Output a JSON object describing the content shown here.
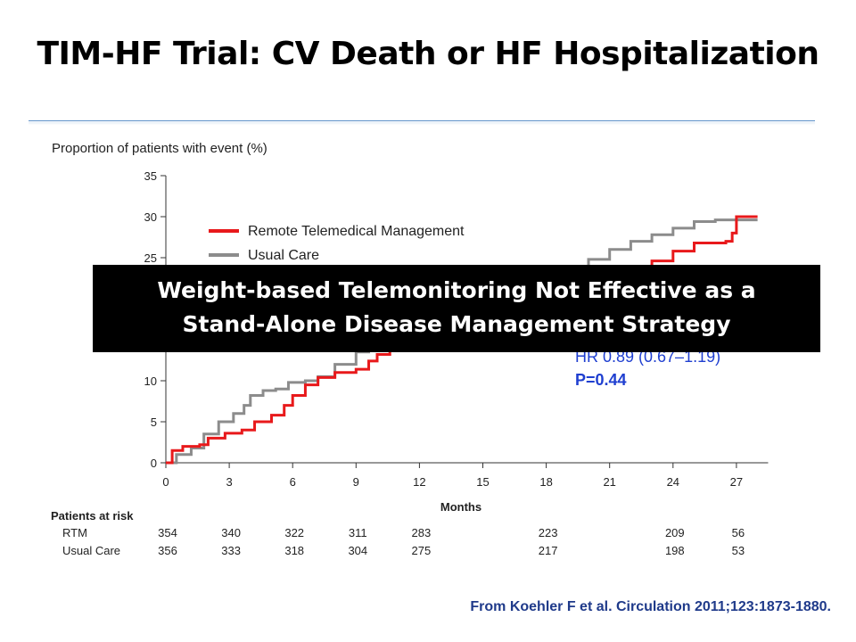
{
  "slide": {
    "title": "TIM-HF Trial: CV Death or HF Hospitalization",
    "banner_line1": "Weight-based Telemonitoring Not Effective as a",
    "banner_line2": "Stand-Alone Disease Management Strategy",
    "citation": "From Koehler F et al. Circulation 2011;123:1873-1880."
  },
  "chart_data": {
    "type": "line",
    "ylabel": "Proportion of patients with event (%)",
    "xlabel": "Months",
    "xlim": [
      0,
      28.5
    ],
    "ylim": [
      0,
      35
    ],
    "x_ticks": [
      0,
      3,
      6,
      9,
      12,
      15,
      18,
      21,
      24,
      27
    ],
    "y_ticks": [
      0,
      5,
      10,
      15,
      20,
      25,
      30,
      35
    ],
    "legend": {
      "placement": "top-left"
    },
    "series": [
      {
        "name": "Remote Telemedical Management",
        "color": "#e8191b",
        "points": [
          [
            0,
            0
          ],
          [
            0.3,
            1.5
          ],
          [
            0.8,
            2.0
          ],
          [
            1.6,
            2.2
          ],
          [
            2.0,
            3.0
          ],
          [
            2.8,
            3.6
          ],
          [
            3.6,
            4.0
          ],
          [
            4.2,
            5.0
          ],
          [
            5.0,
            5.8
          ],
          [
            5.6,
            7.0
          ],
          [
            6.0,
            8.2
          ],
          [
            6.6,
            9.5
          ],
          [
            7.2,
            10.4
          ],
          [
            8.0,
            11.0
          ],
          [
            9.0,
            11.4
          ],
          [
            9.6,
            12.4
          ],
          [
            10.0,
            13.2
          ],
          [
            10.6,
            14.0
          ],
          [
            11.5,
            14.2
          ]
        ],
        "points_tail": [
          [
            22.0,
            22.8
          ],
          [
            23.0,
            24.6
          ],
          [
            24.0,
            25.8
          ],
          [
            25.0,
            26.8
          ],
          [
            26.5,
            27.0
          ],
          [
            26.8,
            28.0
          ],
          [
            27.0,
            30.0
          ],
          [
            28.0,
            30.0
          ]
        ]
      },
      {
        "name": "Usual Care",
        "color": "#8c8c8c",
        "points": [
          [
            0,
            0
          ],
          [
            0.5,
            1.0
          ],
          [
            1.2,
            1.8
          ],
          [
            1.8,
            3.5
          ],
          [
            2.5,
            5.0
          ],
          [
            3.2,
            6.0
          ],
          [
            3.7,
            7.0
          ],
          [
            4.0,
            8.2
          ],
          [
            4.6,
            8.8
          ],
          [
            5.2,
            9.0
          ],
          [
            5.8,
            9.8
          ],
          [
            6.6,
            10.0
          ],
          [
            7.2,
            10.5
          ],
          [
            8.0,
            12.0
          ],
          [
            9.0,
            13.5
          ],
          [
            9.6,
            14.5
          ]
        ],
        "points_tail": [
          [
            19.2,
            23.2
          ],
          [
            20.0,
            24.8
          ],
          [
            21.0,
            26.0
          ],
          [
            22.0,
            27.0
          ],
          [
            23.0,
            27.8
          ],
          [
            24.0,
            28.6
          ],
          [
            25.0,
            29.4
          ],
          [
            26.0,
            29.6
          ],
          [
            28.0,
            29.6
          ]
        ]
      }
    ],
    "annotations": {
      "hr": "HR 0.89 (0.67–1.19)",
      "p": "P=0.44"
    },
    "risk_table": {
      "title": "Patients at risk",
      "columns_months": [
        0,
        3,
        6,
        9,
        12,
        18,
        24,
        27
      ],
      "rows": [
        {
          "label": "RTM",
          "values": [
            "354",
            "340",
            "322",
            "311",
            "283",
            "223",
            "209",
            "56"
          ]
        },
        {
          "label": "Usual Care",
          "values": [
            "356",
            "333",
            "318",
            "304",
            "275",
            "217",
            "198",
            "53"
          ]
        }
      ]
    }
  }
}
